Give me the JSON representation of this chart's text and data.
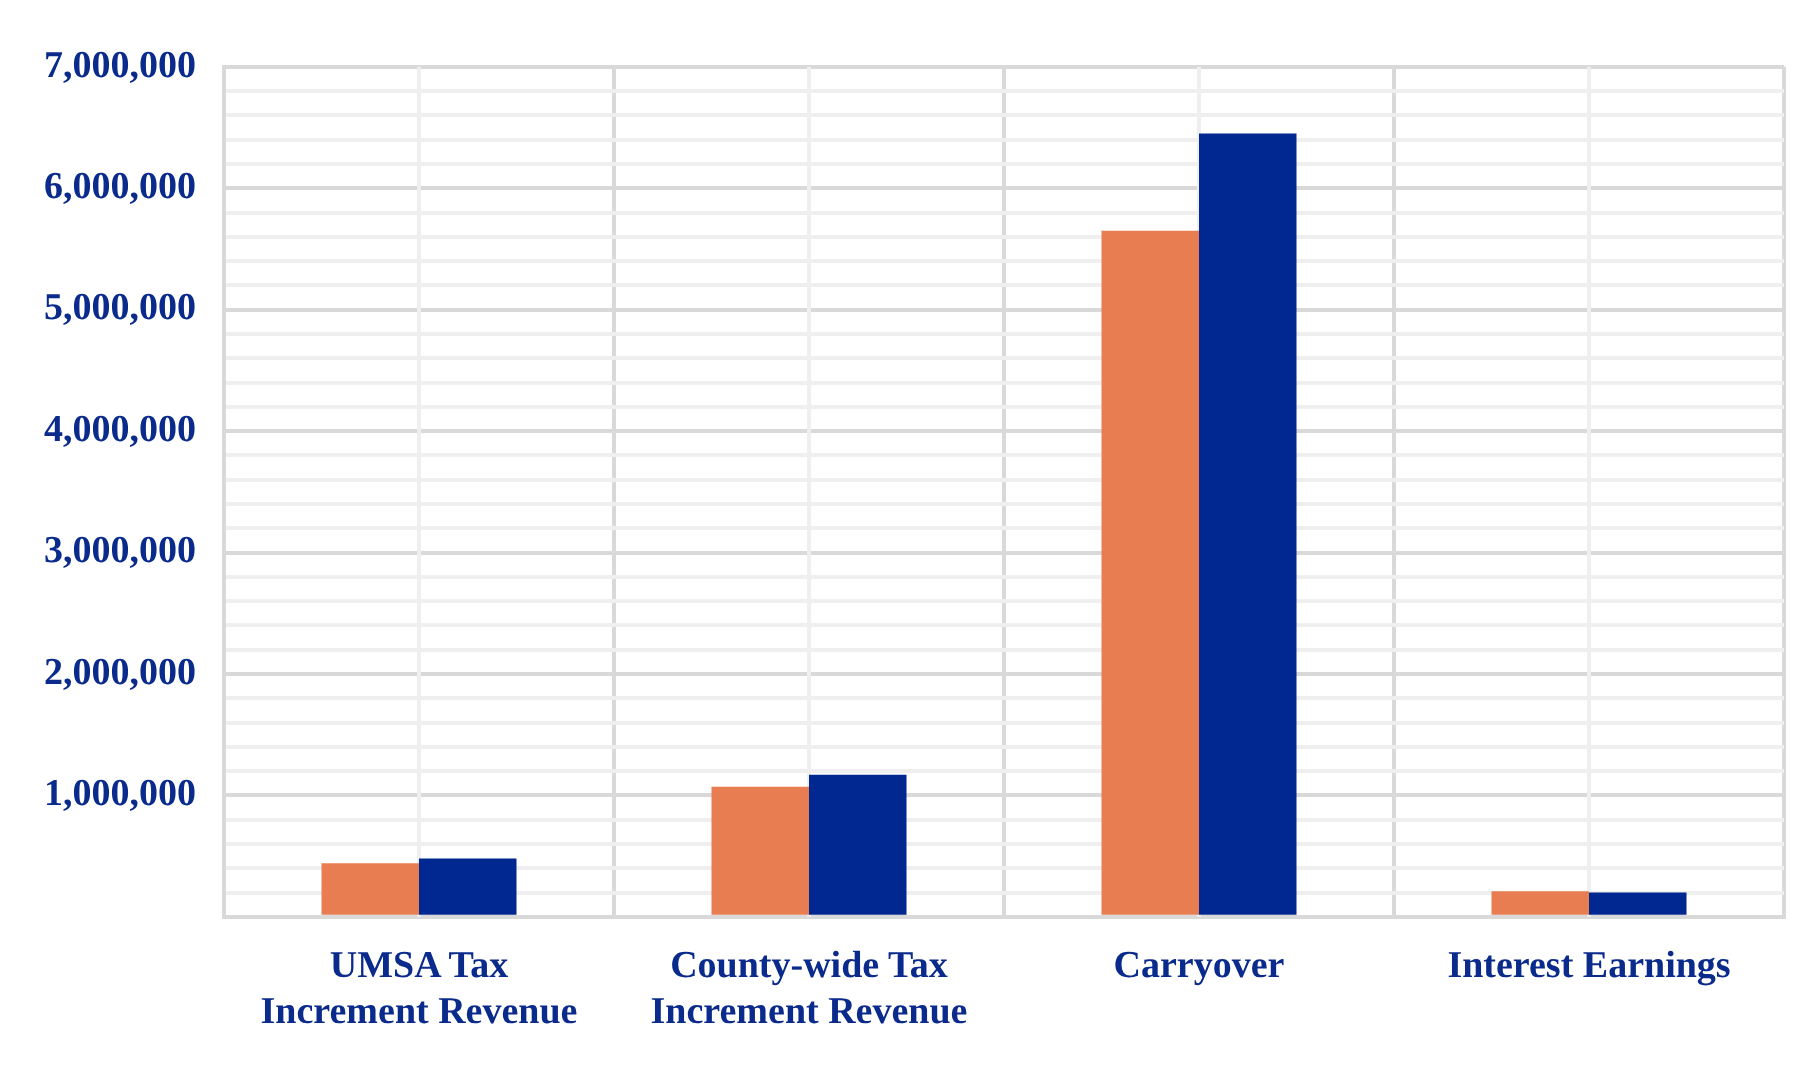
{
  "chart_data": {
    "type": "bar",
    "categories": [
      "UMSA Tax Increment Revenue",
      "County-wide Tax Increment Revenue",
      "Carryover",
      "Interest Earnings"
    ],
    "series": [
      {
        "color": "#e87d52",
        "values": [
          440000,
          1070000,
          5650000,
          210000
        ]
      },
      {
        "color": "#002890",
        "values": [
          480000,
          1170000,
          6450000,
          200000
        ]
      }
    ],
    "ylim": [
      0,
      7000000
    ],
    "yticks": [
      {
        "value": 0,
        "label": null
      },
      {
        "value": 200000,
        "label": null
      },
      {
        "value": 400000,
        "label": null
      },
      {
        "value": 600000,
        "label": null
      },
      {
        "value": 800000,
        "label": null
      },
      {
        "value": 1000000,
        "label": "1,000,000"
      },
      {
        "value": 1200000,
        "label": null
      },
      {
        "value": 1400000,
        "label": null
      },
      {
        "value": 1600000,
        "label": null
      },
      {
        "value": 1800000,
        "label": null
      },
      {
        "value": 2000000,
        "label": "2,000,000"
      },
      {
        "value": 2200000,
        "label": null
      },
      {
        "value": 2400000,
        "label": null
      },
      {
        "value": 2600000,
        "label": null
      },
      {
        "value": 2800000,
        "label": null
      },
      {
        "value": 3000000,
        "label": "3,000,000"
      },
      {
        "value": 3200000,
        "label": null
      },
      {
        "value": 3400000,
        "label": null
      },
      {
        "value": 3600000,
        "label": null
      },
      {
        "value": 3800000,
        "label": null
      },
      {
        "value": 4000000,
        "label": "4,000,000"
      },
      {
        "value": 4200000,
        "label": null
      },
      {
        "value": 4400000,
        "label": null
      },
      {
        "value": 4600000,
        "label": null
      },
      {
        "value": 4800000,
        "label": null
      },
      {
        "value": 5000000,
        "label": "5,000,000"
      },
      {
        "value": 5200000,
        "label": null
      },
      {
        "value": 5400000,
        "label": null
      },
      {
        "value": 5600000,
        "label": null
      },
      {
        "value": 5800000,
        "label": null
      },
      {
        "value": 6000000,
        "label": "6,000,000"
      },
      {
        "value": 6200000,
        "label": null
      },
      {
        "value": 6400000,
        "label": null
      },
      {
        "value": 6600000,
        "label": null
      },
      {
        "value": 6800000,
        "label": null
      },
      {
        "value": 7000000,
        "label": "7,000,000"
      }
    ],
    "grid": true
  }
}
